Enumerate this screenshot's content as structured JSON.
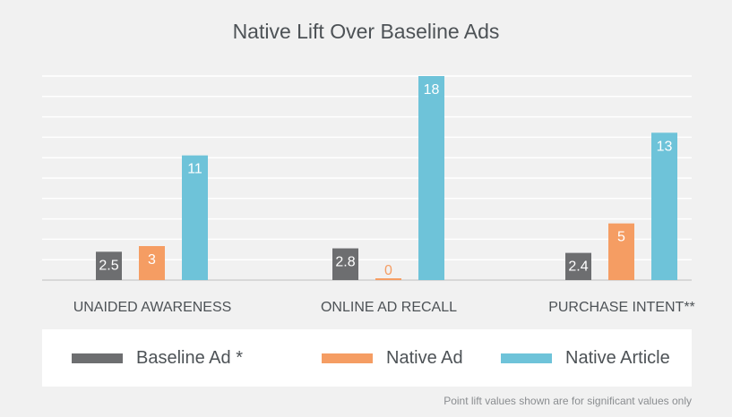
{
  "chart_data": {
    "type": "bar",
    "title": "Native Lift Over Baseline Ads",
    "categories": [
      "UNAIDED AWARENESS",
      "ONLINE AD RECALL",
      "PURCHASE INTENT**"
    ],
    "series": [
      {
        "name": "Baseline Ad *",
        "color": "#6d6e70",
        "values": [
          2.5,
          2.8,
          2.4
        ]
      },
      {
        "name": "Native Ad",
        "color": "#f59d63",
        "values": [
          3,
          0,
          5
        ]
      },
      {
        "name": "Native Article",
        "color": "#6ec3d9",
        "values": [
          11,
          18,
          13
        ]
      }
    ],
    "data_labels": [
      [
        "2.5",
        "2.8",
        "2.4"
      ],
      [
        "3",
        "0",
        "5"
      ],
      [
        "11",
        "18",
        "13"
      ]
    ],
    "ylim": [
      0,
      18
    ],
    "grid": true,
    "legend_position": "bottom",
    "footnote": "Point lift values shown are for significant values only"
  }
}
